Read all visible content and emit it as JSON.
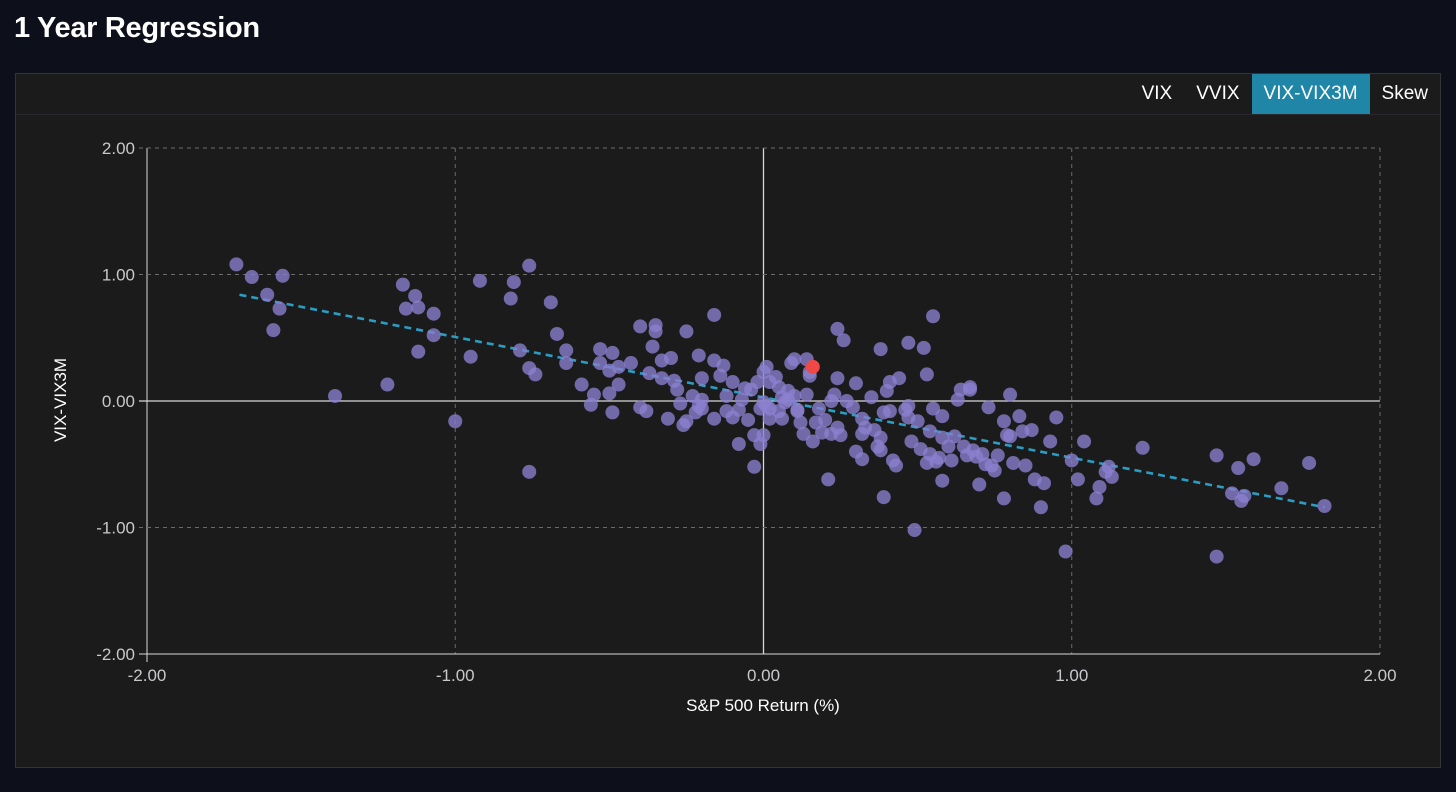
{
  "page": {
    "title": "1 Year Regression"
  },
  "tabs": [
    {
      "label": "VIX",
      "active": false
    },
    {
      "label": "VVIX",
      "active": false
    },
    {
      "label": "VIX-VIX3M",
      "active": true
    },
    {
      "label": "Skew",
      "active": false
    }
  ],
  "colors": {
    "background": "#0d0f1b",
    "panel": "#1b1b1b",
    "accent": "#1f86a8",
    "point": "#8a80d0",
    "highlight_point": "#f04747",
    "regression_line": "#2b9cc4",
    "grid": "#6b6b6b",
    "zero_axis": "#d8d8d8"
  },
  "chart_data": {
    "type": "scatter",
    "xlabel": "S&P 500 Return (%)",
    "ylabel": "VIX-VIX3M",
    "xlim": [
      -2,
      2
    ],
    "ylim": [
      -2,
      2
    ],
    "xticks": [
      "-2.00",
      "-1.00",
      "0.00",
      "1.00",
      "2.00"
    ],
    "yticks": [
      "2.00",
      "1.00",
      "0.00",
      "-1.00",
      "-2.00"
    ],
    "grid": true,
    "regression_line": {
      "x": [
        -1.7,
        1.82
      ],
      "y": [
        0.84,
        -0.84
      ],
      "style": "dashed"
    },
    "highlight": {
      "x": 0.16,
      "y": 0.27
    },
    "points": [
      [
        -1.71,
        1.08
      ],
      [
        -1.66,
        0.98
      ],
      [
        -1.61,
        0.84
      ],
      [
        -1.59,
        0.56
      ],
      [
        -1.57,
        0.73
      ],
      [
        -1.56,
        0.99
      ],
      [
        -1.39,
        0.04
      ],
      [
        -1.22,
        0.13
      ],
      [
        -1.17,
        0.92
      ],
      [
        -1.16,
        0.73
      ],
      [
        -1.13,
        0.83
      ],
      [
        -1.12,
        0.39
      ],
      [
        -1.12,
        0.74
      ],
      [
        -1.07,
        0.52
      ],
      [
        -1.07,
        0.69
      ],
      [
        -1.0,
        -0.16
      ],
      [
        -0.95,
        0.35
      ],
      [
        -0.92,
        0.95
      ],
      [
        -0.82,
        0.81
      ],
      [
        -0.81,
        0.94
      ],
      [
        -0.79,
        0.4
      ],
      [
        -0.76,
        0.26
      ],
      [
        -0.76,
        1.07
      ],
      [
        -0.76,
        -0.56
      ],
      [
        -0.74,
        0.21
      ],
      [
        -0.69,
        0.78
      ],
      [
        -0.67,
        0.53
      ],
      [
        -0.64,
        0.4
      ],
      [
        -0.64,
        0.3
      ],
      [
        -0.59,
        0.13
      ],
      [
        -0.56,
        -0.03
      ],
      [
        -0.55,
        0.05
      ],
      [
        -0.53,
        0.3
      ],
      [
        -0.53,
        0.41
      ],
      [
        -0.5,
        0.06
      ],
      [
        -0.5,
        0.24
      ],
      [
        -0.49,
        0.38
      ],
      [
        -0.49,
        -0.09
      ],
      [
        -0.47,
        0.13
      ],
      [
        -0.47,
        0.27
      ],
      [
        -0.43,
        0.3
      ],
      [
        -0.4,
        0.59
      ],
      [
        -0.4,
        -0.05
      ],
      [
        -0.38,
        -0.08
      ],
      [
        -0.37,
        0.22
      ],
      [
        -0.36,
        0.43
      ],
      [
        -0.35,
        0.6
      ],
      [
        -0.35,
        0.55
      ],
      [
        -0.33,
        0.32
      ],
      [
        -0.33,
        0.18
      ],
      [
        -0.31,
        -0.14
      ],
      [
        -0.3,
        0.34
      ],
      [
        -0.29,
        0.16
      ],
      [
        -0.28,
        0.09
      ],
      [
        -0.27,
        -0.02
      ],
      [
        -0.26,
        -0.19
      ],
      [
        -0.25,
        -0.16
      ],
      [
        -0.25,
        0.55
      ],
      [
        -0.23,
        0.04
      ],
      [
        -0.22,
        -0.09
      ],
      [
        -0.21,
        -0.04
      ],
      [
        -0.2,
        -0.06
      ],
      [
        -0.2,
        0.01
      ],
      [
        -0.2,
        0.18
      ],
      [
        -0.21,
        0.36
      ],
      [
        -0.16,
        0.32
      ],
      [
        -0.16,
        -0.14
      ],
      [
        -0.16,
        0.68
      ],
      [
        -0.14,
        0.2
      ],
      [
        -0.13,
        0.28
      ],
      [
        -0.12,
        0.04
      ],
      [
        -0.12,
        -0.08
      ],
      [
        -0.1,
        -0.13
      ],
      [
        -0.1,
        0.15
      ],
      [
        -0.08,
        -0.34
      ],
      [
        -0.08,
        -0.07
      ],
      [
        -0.07,
        0.01
      ],
      [
        -0.06,
        0.1
      ],
      [
        -0.05,
        -0.15
      ],
      [
        -0.04,
        0.09
      ],
      [
        -0.03,
        -0.52
      ],
      [
        -0.03,
        -0.27
      ],
      [
        -0.02,
        0.15
      ],
      [
        -0.01,
        -0.06
      ],
      [
        -0.01,
        -0.34
      ],
      [
        0.0,
        0.23
      ],
      [
        0.0,
        -0.27
      ],
      [
        0.0,
        -0.01
      ],
      [
        0.01,
        0.27
      ],
      [
        0.01,
        -0.04
      ],
      [
        0.02,
        -0.06
      ],
      [
        0.02,
        0.15
      ],
      [
        0.02,
        -0.14
      ],
      [
        0.04,
        0.19
      ],
      [
        0.05,
        0.11
      ],
      [
        0.05,
        -0.08
      ],
      [
        0.06,
        -0.14
      ],
      [
        0.06,
        0.03
      ],
      [
        0.07,
        -0.01
      ],
      [
        0.08,
        0.01
      ],
      [
        0.08,
        0.08
      ],
      [
        0.09,
        0.3
      ],
      [
        0.1,
        0.33
      ],
      [
        0.1,
        0.04
      ],
      [
        0.11,
        -0.07
      ],
      [
        0.11,
        -0.08
      ],
      [
        0.12,
        -0.17
      ],
      [
        0.13,
        -0.26
      ],
      [
        0.14,
        0.33
      ],
      [
        0.14,
        0.05
      ],
      [
        0.15,
        0.23
      ],
      [
        0.15,
        0.2
      ],
      [
        0.16,
        -0.32
      ],
      [
        0.17,
        -0.17
      ],
      [
        0.18,
        -0.06
      ],
      [
        0.19,
        -0.25
      ],
      [
        0.2,
        -0.15
      ],
      [
        0.21,
        -0.62
      ],
      [
        0.22,
        0.0
      ],
      [
        0.22,
        -0.26
      ],
      [
        0.23,
        0.05
      ],
      [
        0.24,
        0.57
      ],
      [
        0.24,
        0.18
      ],
      [
        0.24,
        -0.21
      ],
      [
        0.25,
        -0.27
      ],
      [
        0.26,
        0.48
      ],
      [
        0.27,
        0.0
      ],
      [
        0.29,
        -0.05
      ],
      [
        0.3,
        -0.4
      ],
      [
        0.3,
        0.14
      ],
      [
        0.32,
        -0.26
      ],
      [
        0.32,
        -0.46
      ],
      [
        0.32,
        -0.14
      ],
      [
        0.33,
        -0.21
      ],
      [
        0.35,
        0.03
      ],
      [
        0.36,
        -0.23
      ],
      [
        0.37,
        -0.36
      ],
      [
        0.38,
        0.41
      ],
      [
        0.38,
        -0.29
      ],
      [
        0.38,
        -0.39
      ],
      [
        0.39,
        -0.76
      ],
      [
        0.39,
        -0.09
      ],
      [
        0.4,
        0.08
      ],
      [
        0.41,
        0.15
      ],
      [
        0.41,
        -0.08
      ],
      [
        0.42,
        -0.47
      ],
      [
        0.43,
        -0.51
      ],
      [
        0.44,
        0.18
      ],
      [
        0.46,
        -0.07
      ],
      [
        0.47,
        0.46
      ],
      [
        0.47,
        -0.13
      ],
      [
        0.47,
        -0.04
      ],
      [
        0.48,
        -0.32
      ],
      [
        0.49,
        -1.02
      ],
      [
        0.5,
        -0.16
      ],
      [
        0.51,
        -0.38
      ],
      [
        0.52,
        0.42
      ],
      [
        0.53,
        0.21
      ],
      [
        0.53,
        -0.49
      ],
      [
        0.54,
        -0.42
      ],
      [
        0.54,
        -0.24
      ],
      [
        0.55,
        0.67
      ],
      [
        0.55,
        -0.06
      ],
      [
        0.56,
        -0.48
      ],
      [
        0.57,
        -0.45
      ],
      [
        0.58,
        -0.12
      ],
      [
        0.58,
        -0.29
      ],
      [
        0.58,
        -0.63
      ],
      [
        0.6,
        -0.36
      ],
      [
        0.61,
        -0.47
      ],
      [
        0.62,
        -0.28
      ],
      [
        0.63,
        0.01
      ],
      [
        0.64,
        0.09
      ],
      [
        0.65,
        -0.36
      ],
      [
        0.66,
        -0.43
      ],
      [
        0.67,
        0.09
      ],
      [
        0.67,
        0.11
      ],
      [
        0.68,
        -0.39
      ],
      [
        0.69,
        -0.44
      ],
      [
        0.7,
        -0.66
      ],
      [
        0.71,
        -0.42
      ],
      [
        0.72,
        -0.5
      ],
      [
        0.73,
        -0.05
      ],
      [
        0.74,
        -0.51
      ],
      [
        0.75,
        -0.55
      ],
      [
        0.76,
        -0.43
      ],
      [
        0.78,
        -0.77
      ],
      [
        0.78,
        -0.16
      ],
      [
        0.79,
        -0.27
      ],
      [
        0.8,
        0.05
      ],
      [
        0.8,
        -0.28
      ],
      [
        0.81,
        -0.49
      ],
      [
        0.83,
        -0.12
      ],
      [
        0.84,
        -0.24
      ],
      [
        0.85,
        -0.51
      ],
      [
        0.87,
        -0.23
      ],
      [
        0.88,
        -0.62
      ],
      [
        0.9,
        -0.84
      ],
      [
        0.91,
        -0.65
      ],
      [
        0.93,
        -0.32
      ],
      [
        0.95,
        -0.13
      ],
      [
        0.98,
        -1.19
      ],
      [
        1.0,
        -0.47
      ],
      [
        1.02,
        -0.62
      ],
      [
        1.04,
        -0.32
      ],
      [
        1.08,
        -0.77
      ],
      [
        1.09,
        -0.68
      ],
      [
        1.11,
        -0.56
      ],
      [
        1.12,
        -0.52
      ],
      [
        1.13,
        -0.6
      ],
      [
        1.23,
        -0.37
      ],
      [
        1.47,
        -0.43
      ],
      [
        1.47,
        -1.23
      ],
      [
        1.52,
        -0.73
      ],
      [
        1.54,
        -0.53
      ],
      [
        1.55,
        -0.79
      ],
      [
        1.56,
        -0.75
      ],
      [
        1.59,
        -0.46
      ],
      [
        1.68,
        -0.69
      ],
      [
        1.77,
        -0.49
      ],
      [
        1.82,
        -0.83
      ]
    ]
  }
}
